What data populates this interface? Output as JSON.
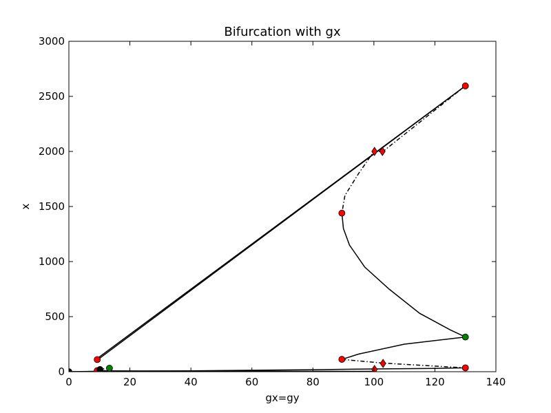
{
  "chart_data": {
    "type": "line",
    "title": "Bifurcation with gx",
    "xlabel": "gx=gy",
    "ylabel": "x",
    "xlim": [
      0,
      140
    ],
    "ylim": [
      0,
      3000
    ],
    "xticks": [
      "0",
      "20",
      "40",
      "60",
      "80",
      "100",
      "120",
      "140"
    ],
    "yticks": [
      "0",
      "500",
      "1000",
      "1500",
      "2000",
      "2500",
      "3000"
    ],
    "grid": false,
    "legend": "none",
    "colors": {
      "line": "#000000",
      "red_marker": "#ff0000",
      "green_marker": "#008000"
    },
    "series": [
      {
        "style": "solid",
        "points": [
          [
            130,
            2595
          ],
          [
            9.5,
            110
          ]
        ]
      },
      {
        "style": "solid",
        "points": [
          [
            130,
            2595
          ],
          [
            9.3,
            120
          ],
          [
            9.0,
            110
          ]
        ]
      },
      {
        "style": "dashdot",
        "points": [
          [
            130,
            2595
          ],
          [
            103,
            2000
          ],
          [
            100,
            2000
          ],
          [
            95,
            1800
          ],
          [
            90.5,
            1600
          ],
          [
            89.5,
            1440
          ]
        ]
      },
      {
        "style": "solid",
        "points": [
          [
            89.5,
            1440
          ],
          [
            90,
            1300
          ],
          [
            92,
            1150
          ],
          [
            97,
            950
          ],
          [
            105,
            750
          ],
          [
            115,
            530
          ],
          [
            125,
            380
          ],
          [
            130,
            315
          ]
        ]
      },
      {
        "style": "solid",
        "points": [
          [
            130,
            315
          ],
          [
            110,
            250
          ],
          [
            95,
            160
          ],
          [
            89.5,
            112
          ]
        ]
      },
      {
        "style": "dashdot",
        "points": [
          [
            89.5,
            112
          ],
          [
            103,
            78
          ],
          [
            130,
            35
          ]
        ]
      },
      {
        "style": "solid",
        "points": [
          [
            0,
            0
          ],
          [
            40,
            8
          ],
          [
            80,
            18
          ],
          [
            100,
            25
          ],
          [
            120,
            30
          ],
          [
            130,
            35
          ]
        ]
      },
      {
        "style": "solid",
        "points": [
          [
            0,
            0
          ],
          [
            9,
            4
          ],
          [
            10,
            8
          ],
          [
            12,
            10
          ]
        ]
      },
      {
        "style": "solid",
        "points": [
          [
            10,
            8
          ],
          [
            50,
            5
          ],
          [
            100,
            3
          ]
        ]
      },
      {
        "style": "dashdot",
        "points": [
          [
            9.3,
            10
          ],
          [
            11,
            25
          ],
          [
            13.3,
            35
          ]
        ]
      }
    ],
    "markers": [
      {
        "shape": "circle",
        "color": "red",
        "x": 130,
        "y": 2595
      },
      {
        "shape": "circle",
        "color": "red",
        "x": 89.5,
        "y": 1440
      },
      {
        "shape": "circle",
        "color": "green",
        "x": 130,
        "y": 315
      },
      {
        "shape": "circle",
        "color": "red",
        "x": 89.5,
        "y": 112
      },
      {
        "shape": "circle",
        "color": "red",
        "x": 130,
        "y": 35
      },
      {
        "shape": "circle",
        "color": "red",
        "x": 9.3,
        "y": 110
      },
      {
        "shape": "circle",
        "color": "green",
        "x": 13.3,
        "y": 32
      },
      {
        "shape": "circle",
        "color": "red",
        "x": 9.3,
        "y": 10
      },
      {
        "shape": "circle",
        "color": "black",
        "x": 10.2,
        "y": 20
      },
      {
        "shape": "circle",
        "color": "black",
        "x": 0,
        "y": 0
      },
      {
        "shape": "diamond",
        "color": "red",
        "x": 100.2,
        "y": 2000
      },
      {
        "shape": "diamond",
        "color": "red",
        "x": 102.8,
        "y": 2000
      },
      {
        "shape": "diamond",
        "color": "red",
        "x": 103,
        "y": 75
      },
      {
        "shape": "diamond",
        "color": "red",
        "x": 100.2,
        "y": 20
      }
    ]
  }
}
